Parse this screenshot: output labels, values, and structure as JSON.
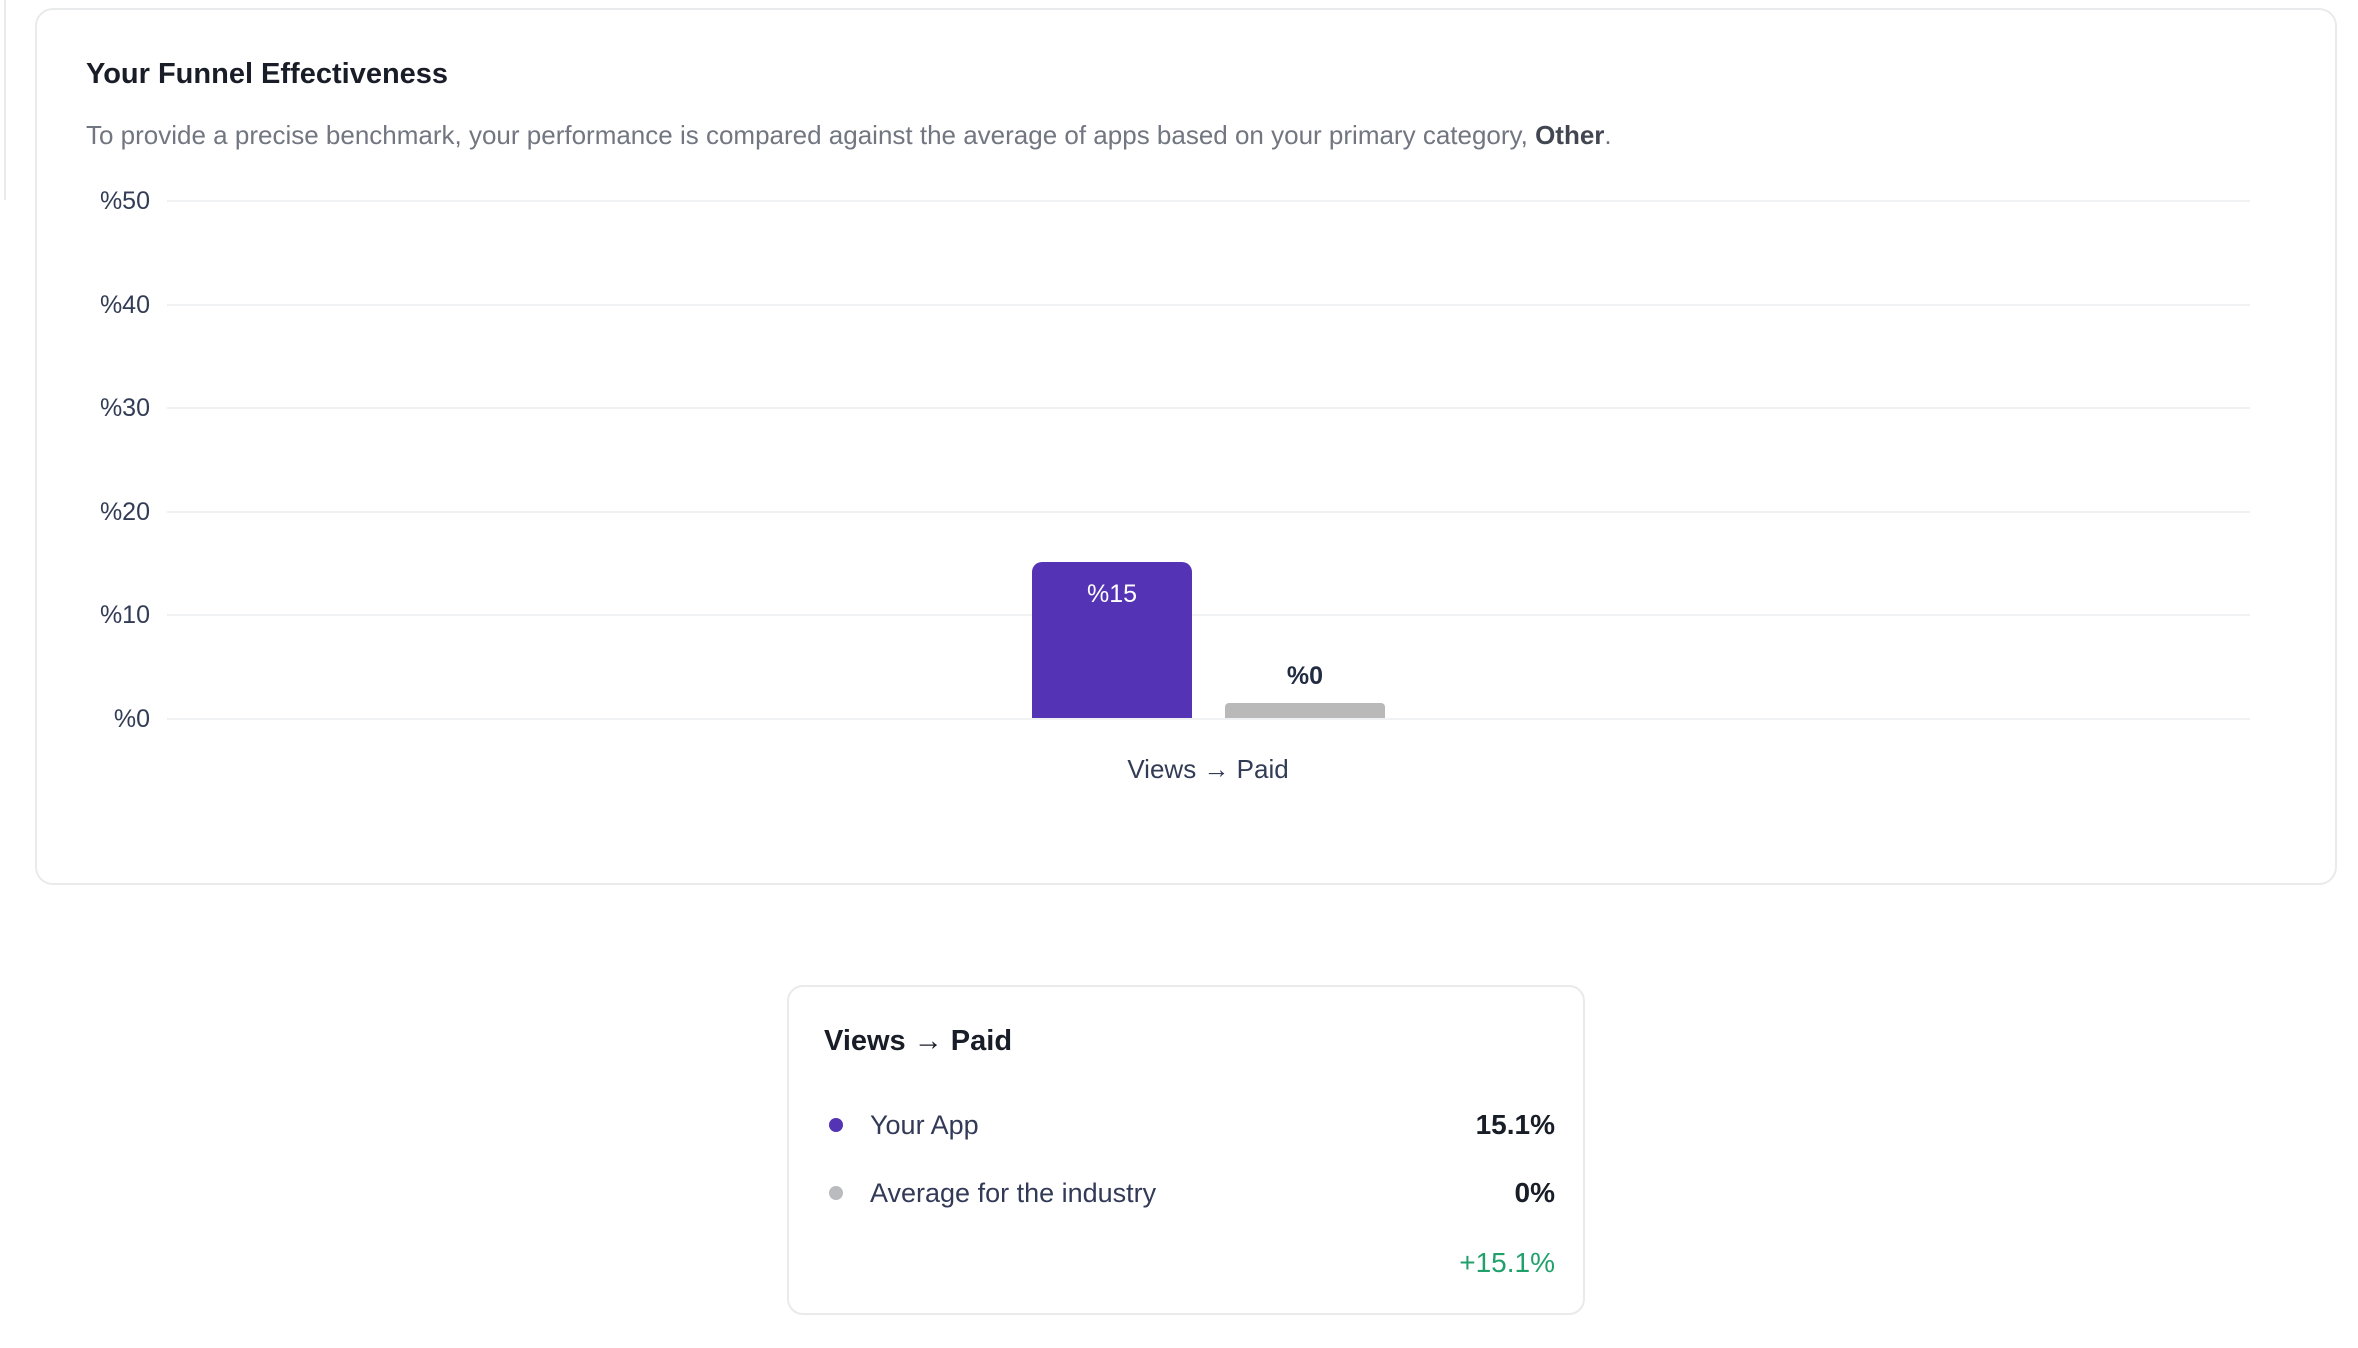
{
  "funnel_card": {
    "title": "Your Funnel Effectiveness",
    "subtitle_prefix": "To provide a precise benchmark, your performance is compared against the average of apps based on your primary category, ",
    "subtitle_bold": "Other",
    "subtitle_suffix": "."
  },
  "chart_data": {
    "type": "bar",
    "title": "Your Funnel Effectiveness",
    "categories": [
      "Views → Paid"
    ],
    "series": [
      {
        "name": "Your App",
        "values": [
          15.1
        ],
        "color": "#5434B4",
        "bar_label": "%15"
      },
      {
        "name": "Average for the industry",
        "values": [
          0
        ],
        "color": "#B9B9B9",
        "bar_label": "%0"
      }
    ],
    "ylim": [
      0,
      50
    ],
    "y_ticks": [
      "%50",
      "%40",
      "%30",
      "%20",
      "%10",
      "%0"
    ],
    "grid": true,
    "xlabel": "",
    "ylabel": "",
    "legend_position": "separate card below chart"
  },
  "legend_card": {
    "title": "Views → Paid",
    "rows": [
      {
        "label": "Your App",
        "value": "15.1%",
        "dot_color": "#5434B4"
      },
      {
        "label": "Average for the industry",
        "value": "0%",
        "dot_color": "#B9BBBE"
      }
    ],
    "delta": "+15.1%",
    "delta_color": "#22A06B"
  },
  "colors": {
    "card_border": "#e9eaec",
    "gridline": "#f0f1f3",
    "axis_text": "#333c55",
    "title_text": "#181d27",
    "subtitle_text": "#717680"
  }
}
